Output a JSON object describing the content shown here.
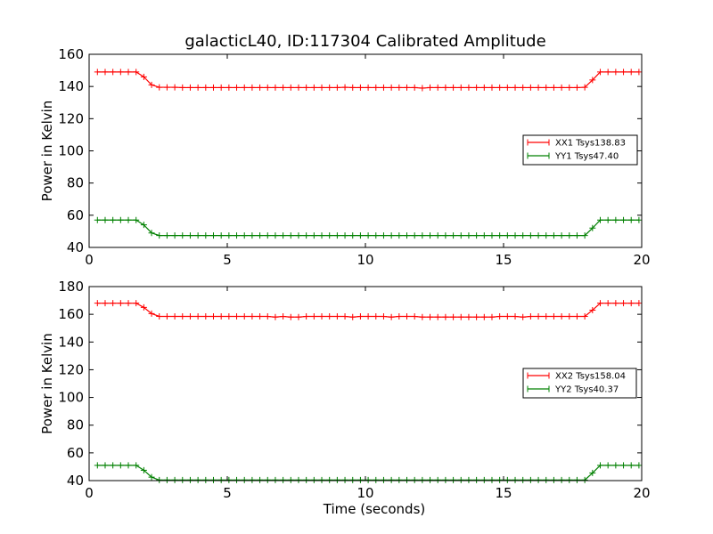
{
  "figure": {
    "title": "galacticL40, ID:117304 Calibrated Amplitude"
  },
  "colors": {
    "series1": "#ff0000",
    "series2": "#008000",
    "frame": "#000000"
  },
  "chart_data": [
    {
      "type": "line",
      "title": "galacticL40, ID:117304 Calibrated Amplitude",
      "xlabel": "",
      "ylabel": "Power in Kelvin",
      "xlim": [
        0,
        20
      ],
      "ylim": [
        40,
        160
      ],
      "xticks": [
        "0",
        "5",
        "10",
        "15",
        "20"
      ],
      "yticks": [
        "40",
        "60",
        "80",
        "100",
        "120",
        "140",
        "160"
      ],
      "grid": false,
      "legend_position": "center-right",
      "x": [
        0.3,
        0.58,
        0.86,
        1.14,
        1.42,
        1.7,
        1.98,
        2.26,
        2.54,
        2.82,
        3.1,
        3.38,
        3.66,
        3.94,
        4.22,
        4.5,
        4.78,
        5.06,
        5.34,
        5.62,
        5.9,
        6.18,
        6.46,
        6.74,
        7.02,
        7.3,
        7.58,
        7.86,
        8.14,
        8.42,
        8.7,
        8.98,
        9.26,
        9.54,
        9.82,
        10.1,
        10.38,
        10.66,
        10.94,
        11.22,
        11.5,
        11.78,
        12.06,
        12.34,
        12.62,
        12.9,
        13.18,
        13.46,
        13.74,
        14.02,
        14.3,
        14.58,
        14.86,
        15.14,
        15.42,
        15.7,
        15.98,
        16.26,
        16.54,
        16.82,
        17.1,
        17.38,
        17.66,
        17.94,
        18.22,
        18.5,
        18.78,
        19.06,
        19.34,
        19.62,
        19.9
      ],
      "series": [
        {
          "name": "XX1 Tsys138.83",
          "color": "#ff0000",
          "values": [
            149,
            149,
            149,
            149,
            149,
            149,
            146,
            141,
            139.5,
            139.5,
            139.5,
            139.3,
            139.3,
            139.3,
            139.3,
            139.3,
            139.3,
            139.3,
            139.3,
            139.3,
            139.3,
            139.3,
            139.3,
            139.3,
            139.3,
            139.3,
            139.3,
            139.3,
            139.3,
            139.3,
            139.3,
            139.3,
            139.5,
            139.3,
            139.3,
            139.3,
            139.3,
            139.3,
            139.3,
            139.3,
            139.3,
            139.3,
            139,
            139.3,
            139.3,
            139.3,
            139.3,
            139.3,
            139.3,
            139.3,
            139.3,
            139.3,
            139.3,
            139.3,
            139.3,
            139.3,
            139.3,
            139.3,
            139.3,
            139.3,
            139.3,
            139.3,
            139.3,
            139.5,
            144,
            149,
            149,
            149,
            149,
            149,
            149
          ]
        },
        {
          "name": "YY1 Tsys47.40",
          "color": "#008000",
          "values": [
            57,
            57,
            57,
            57,
            57,
            57,
            54,
            49,
            47.4,
            47.4,
            47.4,
            47.4,
            47.4,
            47.4,
            47.4,
            47.4,
            47.4,
            47.4,
            47.4,
            47.4,
            47.4,
            47.4,
            47.4,
            47.4,
            47.4,
            47.4,
            47.4,
            47.4,
            47.4,
            47.4,
            47.4,
            47.4,
            47.4,
            47.4,
            47.4,
            47.4,
            47.4,
            47.4,
            47.4,
            47.4,
            47.4,
            47.4,
            47.4,
            47.4,
            47.4,
            47.4,
            47.4,
            47.4,
            47.4,
            47.4,
            47.4,
            47.4,
            47.4,
            47.4,
            47.4,
            47.4,
            47.4,
            47.4,
            47.4,
            47.4,
            47.4,
            47.4,
            47.4,
            47.4,
            52,
            57,
            57,
            57,
            57,
            57,
            57
          ]
        }
      ]
    },
    {
      "type": "line",
      "title": "",
      "xlabel": "Time (seconds)",
      "ylabel": "Power in Kelvin",
      "xlim": [
        0,
        20
      ],
      "ylim": [
        40,
        180
      ],
      "xticks": [
        "0",
        "5",
        "10",
        "15",
        "20"
      ],
      "yticks": [
        "40",
        "60",
        "80",
        "100",
        "120",
        "140",
        "160",
        "180"
      ],
      "grid": false,
      "legend_position": "center-right",
      "x": [
        0.3,
        0.58,
        0.86,
        1.14,
        1.42,
        1.7,
        1.98,
        2.26,
        2.54,
        2.82,
        3.1,
        3.38,
        3.66,
        3.94,
        4.22,
        4.5,
        4.78,
        5.06,
        5.34,
        5.62,
        5.9,
        6.18,
        6.46,
        6.74,
        7.02,
        7.3,
        7.58,
        7.86,
        8.14,
        8.42,
        8.7,
        8.98,
        9.26,
        9.54,
        9.82,
        10.1,
        10.38,
        10.66,
        10.94,
        11.22,
        11.5,
        11.78,
        12.06,
        12.34,
        12.62,
        12.9,
        13.18,
        13.46,
        13.74,
        14.02,
        14.3,
        14.58,
        14.86,
        15.14,
        15.42,
        15.7,
        15.98,
        16.26,
        16.54,
        16.82,
        17.1,
        17.38,
        17.66,
        17.94,
        18.22,
        18.5,
        18.78,
        19.06,
        19.34,
        19.62,
        19.9
      ],
      "series": [
        {
          "name": "XX2 Tsys158.04",
          "color": "#ff0000",
          "values": [
            168,
            168,
            168,
            168,
            168,
            168,
            165,
            160.5,
            158.5,
            158.5,
            158.5,
            158.5,
            158.5,
            158.5,
            158.5,
            158.5,
            158.5,
            158.5,
            158.5,
            158.5,
            158.5,
            158.5,
            158.5,
            158,
            158.5,
            158,
            158,
            158.5,
            158.5,
            158.5,
            158.5,
            158.5,
            158.5,
            158,
            158.5,
            158.5,
            158.5,
            158.5,
            158,
            158.5,
            158.5,
            158.5,
            158,
            158,
            158,
            158,
            158,
            158,
            158,
            158,
            158,
            158,
            158.5,
            158.5,
            158.5,
            158,
            158.5,
            158.5,
            158.5,
            158.5,
            158.5,
            158.5,
            158.5,
            158.5,
            163,
            168,
            168,
            168,
            168,
            168,
            168
          ]
        },
        {
          "name": "YY2 Tsys40.37",
          "color": "#008000",
          "values": [
            51,
            51,
            51,
            51,
            51,
            51,
            47.5,
            42.5,
            40.4,
            40.4,
            40.4,
            40.4,
            40.4,
            40.4,
            40.4,
            40.4,
            40.4,
            40.4,
            40.4,
            40.4,
            40.4,
            40.4,
            40.4,
            40.4,
            40.4,
            40.4,
            40.4,
            40.4,
            40.4,
            40.4,
            40.4,
            40.4,
            40.4,
            40.4,
            40.4,
            40.4,
            40.4,
            40.4,
            40.4,
            40.4,
            40.4,
            40.4,
            40.4,
            40.4,
            40.4,
            40.4,
            40.4,
            40.4,
            40.4,
            40.4,
            40.4,
            40.4,
            40.4,
            40.4,
            40.4,
            40.4,
            40.4,
            40.4,
            40.4,
            40.4,
            40.4,
            40.4,
            40.4,
            40.4,
            45.5,
            51,
            51,
            51,
            51,
            51,
            51
          ]
        }
      ]
    }
  ]
}
